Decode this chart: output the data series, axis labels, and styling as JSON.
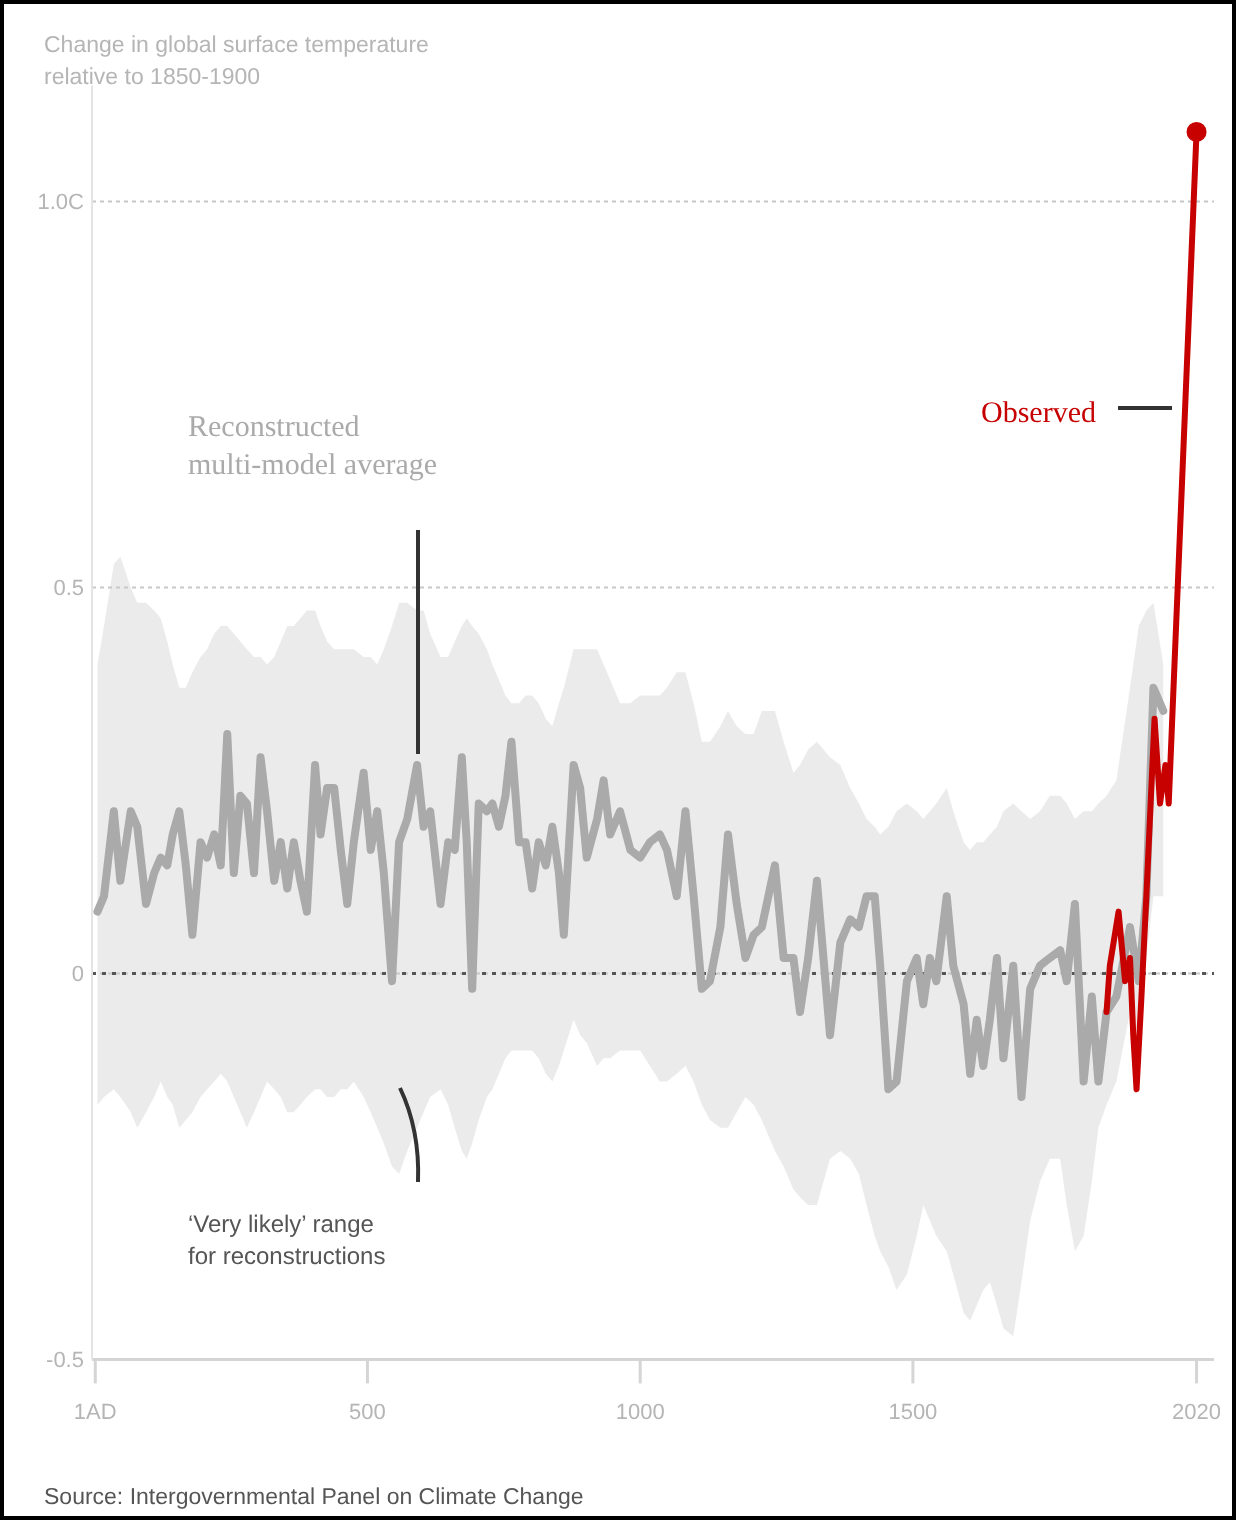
{
  "chart_data": {
    "type": "line",
    "title": "Change in global surface temperature relative to 1850-1900",
    "annotations": [
      "‘Very likely’ range for reconstructions",
      "Source: Intergovernmental Panel on Climate Change"
    ],
    "xlim": [
      -5,
      2052
    ],
    "xticks": [
      {
        "value": 1,
        "label": "1AD"
      },
      500,
      1000,
      1500,
      2020
    ],
    "ylim": [
      -0.5,
      1.15
    ],
    "yticks": [
      -0.5,
      0,
      0.5,
      {
        "value": 1,
        "label": "1.0C"
      }
    ],
    "grid": "y",
    "legend": false,
    "ref_lines": [
      {
        "axis": "y",
        "value": 0,
        "color": "#555555",
        "line_style": "dotted"
      }
    ],
    "series": [
      {
        "name": "Reconstructed multi-model average",
        "color": "#aaaaaa",
        "x": [
          5,
          17,
          35,
          47,
          66,
          78,
          94,
          109,
          121,
          133,
          143,
          155,
          167,
          179,
          194,
          206,
          219,
          231,
          243,
          255,
          267,
          279,
          292,
          304,
          316,
          329,
          341,
          353,
          365,
          377,
          389,
          404,
          414,
          426,
          439,
          451,
          463,
          475,
          493,
          506,
          518,
          530,
          545,
          558,
          573,
          591,
          603,
          615,
          634,
          648,
          660,
          673,
          682,
          692,
          704,
          719,
          729,
          741,
          753,
          764,
          778,
          790,
          802,
          814,
          827,
          839,
          851,
          860,
          878,
          890,
          902,
          921,
          933,
          945,
          963,
          982,
          1000,
          1018,
          1036,
          1049,
          1067,
          1083,
          1098,
          1113,
          1128,
          1147,
          1161,
          1177,
          1193,
          1208,
          1223,
          1247,
          1263,
          1281,
          1293,
          1308,
          1324,
          1336,
          1348,
          1367,
          1385,
          1401,
          1415,
          1430,
          1440,
          1455,
          1470,
          1489,
          1507,
          1519,
          1531,
          1543,
          1562,
          1574,
          1593,
          1605,
          1617,
          1629,
          1641,
          1654,
          1666,
          1684,
          1699,
          1715,
          1733,
          1751,
          1770,
          1782,
          1797,
          1813,
          1828,
          1840,
          1855,
          1873,
          1898,
          1914,
          1928,
          1941,
          1959
        ],
        "values": [
          0.08,
          0.1,
          0.21,
          0.12,
          0.21,
          0.19,
          0.09,
          0.13,
          0.15,
          0.14,
          0.18,
          0.21,
          0.14,
          0.05,
          0.17,
          0.15,
          0.18,
          0.14,
          0.31,
          0.13,
          0.23,
          0.22,
          0.13,
          0.28,
          0.21,
          0.12,
          0.17,
          0.11,
          0.17,
          0.12,
          0.08,
          0.27,
          0.18,
          0.24,
          0.24,
          0.16,
          0.09,
          0.17,
          0.26,
          0.16,
          0.21,
          0.13,
          -0.01,
          0.17,
          0.2,
          0.27,
          0.19,
          0.21,
          0.09,
          0.17,
          0.16,
          0.28,
          0.17,
          -0.02,
          0.22,
          0.21,
          0.22,
          0.19,
          0.23,
          0.3,
          0.17,
          0.17,
          0.11,
          0.17,
          0.14,
          0.19,
          0.13,
          0.05,
          0.27,
          0.24,
          0.15,
          0.2,
          0.25,
          0.18,
          0.21,
          0.16,
          0.15,
          0.17,
          0.18,
          0.16,
          0.1,
          0.21,
          0.1,
          -0.02,
          -0.01,
          0.06,
          0.18,
          0.09,
          0.02,
          0.05,
          0.06,
          0.14,
          0.02,
          0.02,
          -0.05,
          0.02,
          0.12,
          0.02,
          -0.08,
          0.04,
          0.07,
          0.06,
          0.1,
          0.1,
          0.01,
          -0.15,
          -0.14,
          -0.01,
          0.02,
          -0.04,
          0.02,
          -0.01,
          0.1,
          0.01,
          -0.04,
          -0.13,
          -0.06,
          -0.12,
          -0.06,
          0.02,
          -0.11,
          0.01,
          -0.16,
          -0.02,
          0.01,
          0.02,
          0.03,
          -0.01,
          0.09,
          -0.14,
          -0.03,
          -0.14,
          -0.05,
          -0.03,
          0.06,
          -0.01,
          0.1,
          0.37,
          0.34
        ],
        "upper": [
          0.4,
          0.45,
          0.53,
          0.54,
          0.5,
          0.48,
          0.48,
          0.47,
          0.46,
          0.43,
          0.4,
          0.37,
          0.37,
          0.39,
          0.41,
          0.42,
          0.44,
          0.45,
          0.45,
          0.44,
          0.43,
          0.42,
          0.41,
          0.41,
          0.4,
          0.41,
          0.43,
          0.45,
          0.45,
          0.46,
          0.47,
          0.47,
          0.45,
          0.43,
          0.42,
          0.42,
          0.42,
          0.42,
          0.41,
          0.41,
          0.4,
          0.42,
          0.45,
          0.48,
          0.48,
          0.47,
          0.47,
          0.44,
          0.41,
          0.41,
          0.43,
          0.45,
          0.46,
          0.45,
          0.44,
          0.42,
          0.4,
          0.38,
          0.36,
          0.35,
          0.35,
          0.36,
          0.36,
          0.35,
          0.33,
          0.32,
          0.35,
          0.37,
          0.42,
          0.42,
          0.42,
          0.42,
          0.4,
          0.38,
          0.35,
          0.35,
          0.36,
          0.36,
          0.36,
          0.37,
          0.39,
          0.39,
          0.35,
          0.3,
          0.3,
          0.32,
          0.34,
          0.32,
          0.31,
          0.31,
          0.34,
          0.34,
          0.3,
          0.26,
          0.27,
          0.29,
          0.3,
          0.29,
          0.28,
          0.27,
          0.24,
          0.22,
          0.2,
          0.19,
          0.18,
          0.19,
          0.21,
          0.22,
          0.21,
          0.2,
          0.21,
          0.22,
          0.24,
          0.21,
          0.17,
          0.16,
          0.17,
          0.17,
          0.18,
          0.19,
          0.21,
          0.22,
          0.21,
          0.2,
          0.21,
          0.23,
          0.23,
          0.22,
          0.2,
          0.21,
          0.21,
          0.22,
          0.23,
          0.25,
          0.37,
          0.45,
          0.47,
          0.48,
          0.4
        ],
        "lower": [
          -0.17,
          -0.16,
          -0.15,
          -0.16,
          -0.18,
          -0.2,
          -0.18,
          -0.16,
          -0.14,
          -0.16,
          -0.17,
          -0.2,
          -0.19,
          -0.18,
          -0.16,
          -0.15,
          -0.14,
          -0.13,
          -0.14,
          -0.16,
          -0.18,
          -0.2,
          -0.18,
          -0.16,
          -0.14,
          -0.15,
          -0.16,
          -0.18,
          -0.18,
          -0.17,
          -0.16,
          -0.15,
          -0.15,
          -0.16,
          -0.16,
          -0.15,
          -0.15,
          -0.14,
          -0.16,
          -0.18,
          -0.2,
          -0.22,
          -0.25,
          -0.26,
          -0.23,
          -0.2,
          -0.18,
          -0.16,
          -0.15,
          -0.17,
          -0.2,
          -0.23,
          -0.24,
          -0.22,
          -0.19,
          -0.16,
          -0.15,
          -0.13,
          -0.11,
          -0.1,
          -0.1,
          -0.1,
          -0.1,
          -0.11,
          -0.13,
          -0.14,
          -0.12,
          -0.1,
          -0.06,
          -0.08,
          -0.09,
          -0.12,
          -0.11,
          -0.11,
          -0.1,
          -0.1,
          -0.1,
          -0.12,
          -0.14,
          -0.14,
          -0.13,
          -0.12,
          -0.14,
          -0.17,
          -0.19,
          -0.2,
          -0.2,
          -0.18,
          -0.16,
          -0.17,
          -0.19,
          -0.23,
          -0.25,
          -0.28,
          -0.29,
          -0.3,
          -0.3,
          -0.27,
          -0.24,
          -0.23,
          -0.24,
          -0.26,
          -0.3,
          -0.34,
          -0.36,
          -0.38,
          -0.41,
          -0.39,
          -0.34,
          -0.3,
          -0.32,
          -0.34,
          -0.36,
          -0.39,
          -0.44,
          -0.45,
          -0.43,
          -0.41,
          -0.4,
          -0.43,
          -0.46,
          -0.47,
          -0.4,
          -0.32,
          -0.27,
          -0.24,
          -0.24,
          -0.3,
          -0.36,
          -0.34,
          -0.27,
          -0.2,
          -0.17,
          -0.14,
          -0.05,
          -0.08,
          0.02,
          0.1,
          0.1
        ]
      },
      {
        "name": "Observed",
        "color": "#c70000",
        "x": [
          1855,
          1861,
          1877,
          1889,
          1898,
          1904,
          1910,
          1919,
          1928,
          1943,
          1953,
          1963,
          1969,
          2020
        ],
        "values": [
          -0.05,
          0.01,
          0.08,
          -0.01,
          0.02,
          -0.08,
          -0.15,
          -0.03,
          0.1,
          0.33,
          0.22,
          0.27,
          0.22,
          1.09
        ]
      },
      {
        "type": "scatter",
        "color": "#c70000",
        "marker": "circle",
        "x": [
          2020
        ],
        "values": [
          1.09
        ]
      }
    ]
  }
}
